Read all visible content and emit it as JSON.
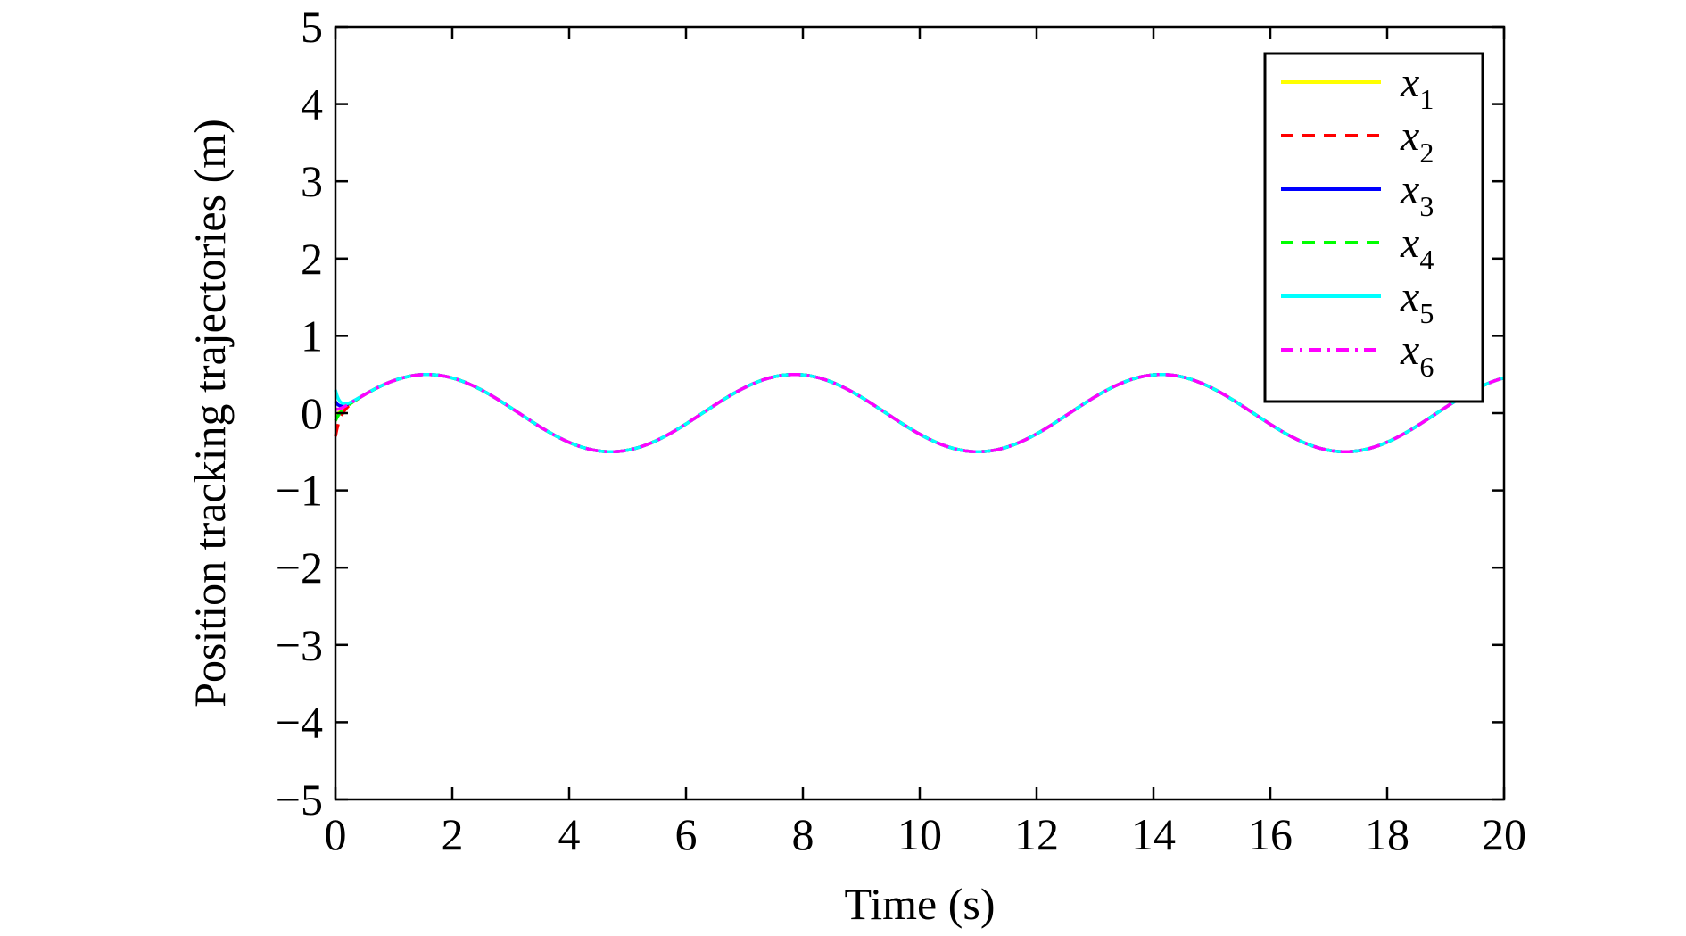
{
  "chart_data": {
    "type": "line",
    "xlabel": "Time (s)",
    "ylabel": "Position tracking trajectories (m)",
    "xlim": [
      0,
      20
    ],
    "ylim": [
      -5,
      5
    ],
    "xticks": [
      "0",
      "2",
      "4",
      "6",
      "8",
      "10",
      "12",
      "14",
      "16",
      "18",
      "20"
    ],
    "yticks": [
      "−5",
      "−4",
      "−3",
      "−2",
      "−1",
      "0",
      "1",
      "2",
      "3",
      "4",
      "5"
    ],
    "grid": false,
    "legend_position": "top-right",
    "reference": {
      "description": "all agents converge to 0.5·sin(t)",
      "amplitude": 0.5,
      "angular_frequency": 1.0
    },
    "series": [
      {
        "name": "x",
        "subscript": "1",
        "color": "#ffff00",
        "dash": "solid",
        "x0": 0.0,
        "peak_t": 0.05,
        "initial": -0.05
      },
      {
        "name": "x",
        "subscript": "2",
        "color": "#ff0000",
        "dash": "dashed",
        "x0": -0.3,
        "peak_t": 0.0,
        "initial": -0.3
      },
      {
        "name": "x",
        "subscript": "3",
        "color": "#0000ff",
        "dash": "solid",
        "x0": 0.15,
        "peak_t": 0.0,
        "initial": 0.15
      },
      {
        "name": "x",
        "subscript": "4",
        "color": "#00ff00",
        "dash": "dashed",
        "x0": -0.1,
        "peak_t": 0.0,
        "initial": -0.1
      },
      {
        "name": "x",
        "subscript": "5",
        "color": "#00ffff",
        "dash": "solid",
        "x0": 0.3,
        "peak_t": 0.0,
        "initial": 0.3
      },
      {
        "name": "x",
        "subscript": "6",
        "color": "#ff00ff",
        "dash": "dashdot",
        "x0": 0.05,
        "peak_t": 0.0,
        "initial": 0.05
      }
    ]
  }
}
